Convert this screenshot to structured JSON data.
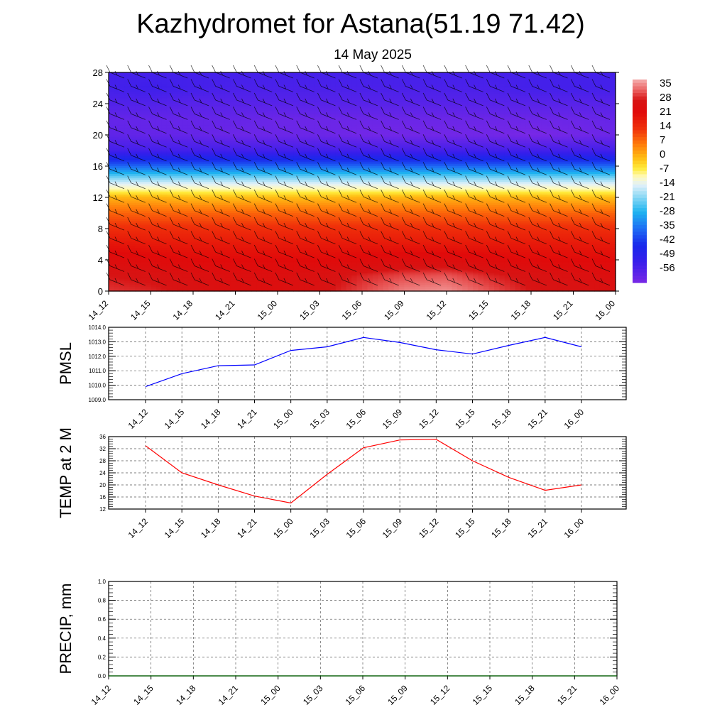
{
  "header": {
    "title": "Kazhydromet for Astana(51.19 71.42)",
    "subtitle": "14 May 2025"
  },
  "time_labels": [
    "14_12",
    "14_15",
    "14_18",
    "14_21",
    "15_00",
    "15_03",
    "15_06",
    "15_09",
    "15_12",
    "15_15",
    "15_18",
    "15_21",
    "16_00"
  ],
  "chart_data": [
    {
      "type": "heatmap",
      "name": "temperature-cross-section",
      "x": [
        "14_12",
        "14_15",
        "14_18",
        "14_21",
        "15_00",
        "15_03",
        "15_06",
        "15_09",
        "15_12",
        "15_15",
        "15_18",
        "15_21",
        "16_00"
      ],
      "y_ticks": [
        0,
        4,
        8,
        12,
        16,
        20,
        24,
        28
      ],
      "ylim": [
        0,
        28
      ],
      "colorbar_labels": [
        "35",
        "28",
        "21",
        "14",
        "7",
        "0",
        "-7",
        "-14",
        "-21",
        "-28",
        "-35",
        "-42",
        "-49",
        "-56"
      ],
      "colorbar_range": [
        -60,
        38
      ],
      "levels": [
        0,
        2,
        4,
        6,
        8,
        10,
        12,
        13,
        14,
        16,
        18,
        20,
        22,
        24,
        26,
        28
      ],
      "values": [
        [
          30,
          29,
          27,
          25,
          25,
          27,
          31,
          35,
          36,
          32,
          28,
          27,
          26
        ],
        [
          28,
          27,
          26,
          25,
          25,
          26,
          29,
          31,
          32,
          29,
          27,
          26,
          25
        ],
        [
          24,
          23,
          22,
          22,
          22,
          22,
          23,
          24,
          24,
          23,
          22,
          22,
          22
        ],
        [
          20,
          19,
          19,
          19,
          19,
          19,
          19,
          19,
          19,
          19,
          19,
          19,
          19
        ],
        [
          15,
          15,
          15,
          15,
          15,
          15,
          15,
          15,
          15,
          15,
          15,
          15,
          15
        ],
        [
          9,
          9,
          9,
          9,
          9,
          9,
          9,
          9,
          9,
          9,
          9,
          9,
          9
        ],
        [
          1,
          1,
          0,
          0,
          0,
          0,
          1,
          1,
          1,
          1,
          1,
          0,
          0
        ],
        [
          -8,
          -8,
          -8,
          -8,
          -8,
          -8,
          -8,
          -8,
          -8,
          -8,
          -8,
          -8,
          -8
        ],
        [
          -15,
          -15,
          -15,
          -15,
          -15,
          -15,
          -15,
          -15,
          -15,
          -15,
          -15,
          -15,
          -15
        ],
        [
          -35,
          -35,
          -35,
          -35,
          -35,
          -35,
          -35,
          -35,
          -35,
          -35,
          -35,
          -35,
          -35
        ],
        [
          -52,
          -52,
          -52,
          -52,
          -52,
          -52,
          -52,
          -52,
          -52,
          -52,
          -52,
          -52,
          -52
        ],
        [
          -56,
          -57,
          -57,
          -58,
          -58,
          -58,
          -59,
          -59,
          -59,
          -59,
          -60,
          -59,
          -58
        ],
        [
          -57,
          -57,
          -57,
          -57,
          -58,
          -58,
          -58,
          -58,
          -58,
          -58,
          -58,
          -58,
          -57
        ],
        [
          -54,
          -54,
          -55,
          -55,
          -55,
          -55,
          -55,
          -55,
          -55,
          -55,
          -55,
          -55,
          -55
        ],
        [
          -52,
          -51,
          -52,
          -53,
          -53,
          -53,
          -53,
          -53,
          -53,
          -53,
          -52,
          -52,
          -52
        ],
        [
          -52,
          -52,
          -52,
          -52,
          -52,
          -52,
          -52,
          -52,
          -52,
          -52,
          -52,
          -52,
          -52
        ]
      ],
      "wind_barbs": true
    },
    {
      "type": "line",
      "name": "pmsl",
      "ylabel": "PMSL",
      "x": [
        "14_12",
        "14_15",
        "14_18",
        "14_21",
        "15_00",
        "15_03",
        "15_06",
        "15_09",
        "15_12",
        "15_15",
        "15_18",
        "15_21",
        "16_00"
      ],
      "y_ticks": [
        "1009.0",
        "1010.0",
        "1011.0",
        "1012.0",
        "1013.0",
        "1014.0"
      ],
      "ylim": [
        1009.0,
        1014.0
      ],
      "series": [
        {
          "values": [
            1009.9,
            1010.8,
            1011.35,
            1011.4,
            1012.4,
            1012.65,
            1013.3,
            1012.95,
            1012.45,
            1012.15,
            1012.75,
            1013.3,
            1012.65
          ],
          "color": "#0000ff"
        }
      ],
      "grid": true
    },
    {
      "type": "line",
      "name": "temp-2m",
      "ylabel": "TEMP at 2 M",
      "x": [
        "14_12",
        "14_15",
        "14_18",
        "14_21",
        "15_00",
        "15_03",
        "15_06",
        "15_09",
        "15_12",
        "15_15",
        "15_18",
        "15_21",
        "16_00"
      ],
      "y_ticks": [
        "12",
        "16",
        "20",
        "24",
        "28",
        "32",
        "36"
      ],
      "ylim": [
        12,
        36
      ],
      "series": [
        {
          "values": [
            33.0,
            24.0,
            20.0,
            16.3,
            14.0,
            23.5,
            32.3,
            34.9,
            35.1,
            28.0,
            22.5,
            18.2,
            20.0
          ],
          "color": "#ff0000"
        }
      ],
      "grid": true
    },
    {
      "type": "line",
      "name": "precip",
      "ylabel": "PRECIP, mm",
      "x": [
        "14_12",
        "14_15",
        "14_18",
        "14_21",
        "15_00",
        "15_03",
        "15_06",
        "15_09",
        "15_12",
        "15_15",
        "15_18",
        "15_21",
        "16_00"
      ],
      "y_ticks": [
        "0.0",
        "0.2",
        "0.4",
        "0.6",
        "0.8",
        "1.0"
      ],
      "ylim": [
        0.0,
        1.0
      ],
      "series": [
        {
          "values": [
            0,
            0,
            0,
            0,
            0,
            0,
            0,
            0,
            0,
            0,
            0,
            0,
            0
          ],
          "color": "#006400"
        }
      ],
      "grid": true
    }
  ]
}
